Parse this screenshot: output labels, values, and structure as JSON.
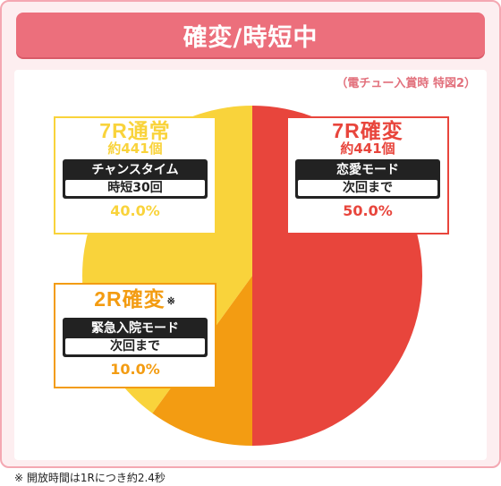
{
  "title": "確変/時短中",
  "subtitle": "（電チュー入賞時 特図2）",
  "footnote": "※ 開放時間は1Rにつき約2.4秒",
  "colors": {
    "frame": "#f4a8b2",
    "title_bg": "#ec6f7c",
    "red": "#e8453c",
    "yellow": "#f9d33b",
    "orange": "#f39c12"
  },
  "chart_data": {
    "type": "pie",
    "slices": [
      {
        "name": "7R確変",
        "value": 50.0,
        "color": "#e8453c",
        "count": "約441個",
        "mode_label": "恋愛モード",
        "mode_value": "次回まで",
        "percent_label": "50.0%",
        "note_mark": ""
      },
      {
        "name": "2R確変",
        "value": 10.0,
        "color": "#f39c12",
        "count": "",
        "mode_label": "緊急入院モード",
        "mode_value": "次回まで",
        "percent_label": "10.0%",
        "note_mark": "※"
      },
      {
        "name": "7R通常",
        "value": 40.0,
        "color": "#f9d33b",
        "count": "約441個",
        "mode_label": "チャンスタイム",
        "mode_value": "時短30回",
        "percent_label": "40.0%",
        "note_mark": ""
      }
    ]
  }
}
